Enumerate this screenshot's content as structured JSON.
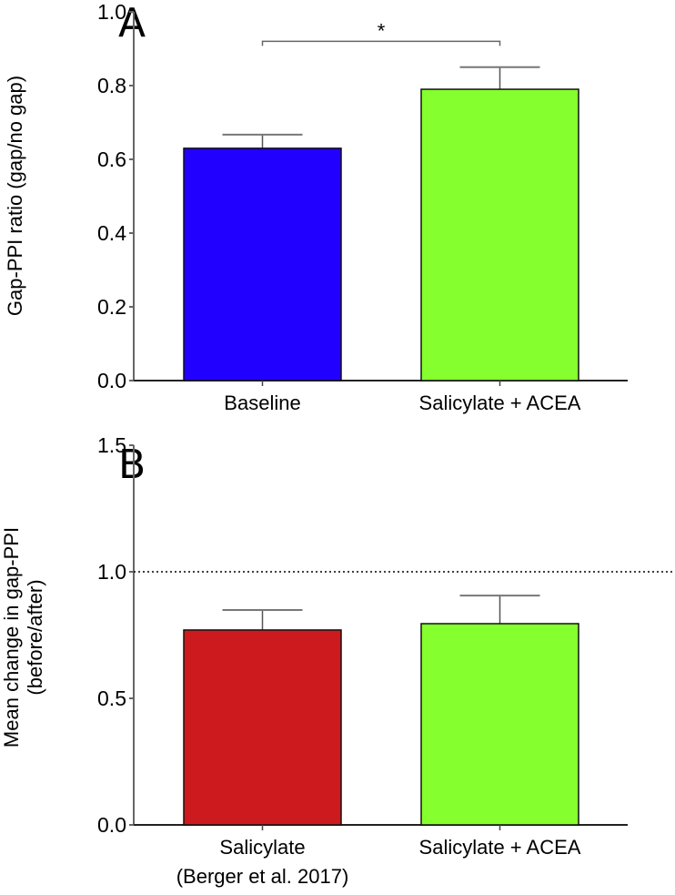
{
  "chart_data": [
    {
      "type": "bar",
      "panel_label": "A",
      "ylabel": "Gap-PPI ratio (gap/no gap)",
      "xlabel": "",
      "ylim": [
        0,
        1.0
      ],
      "yticks": [
        "0.0",
        "0.2",
        "0.4",
        "0.6",
        "0.8",
        "1.0"
      ],
      "categories": [
        "Baseline",
        "Salicylate + ACEA"
      ],
      "values": [
        0.63,
        0.79
      ],
      "error_upper": [
        0.667,
        0.85
      ],
      "colors": [
        "#2200ff",
        "#86ff2e"
      ],
      "significance": {
        "between": [
          0,
          1
        ],
        "label": "*",
        "level": 0.92
      },
      "grid": false
    },
    {
      "type": "bar",
      "panel_label": "B",
      "ylabel": [
        "Mean change in gap-PPI",
        "(before/after)"
      ],
      "xlabel": "",
      "ylim": [
        0,
        1.5
      ],
      "yticks": [
        "0.0",
        "0.5",
        "1.0",
        "1.5"
      ],
      "categories": [
        [
          "Salicylate",
          "(Berger et al. 2017)"
        ],
        [
          "Salicylate + ACEA"
        ]
      ],
      "values": [
        0.77,
        0.795
      ],
      "error_upper": [
        0.849,
        0.906
      ],
      "colors": [
        "#cc1a1e",
        "#86ff2e"
      ],
      "reference_line": 1.0,
      "grid": false
    }
  ]
}
